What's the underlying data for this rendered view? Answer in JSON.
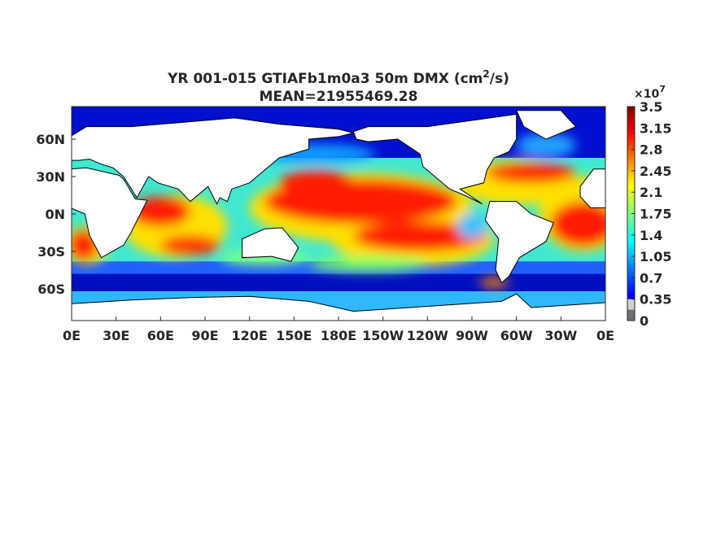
{
  "title": {
    "line1_before": "YR 001-015 GTIAFb1m0a3 50m DMX (cm",
    "line1_sup": "2",
    "line1_after": "/s)",
    "line2": "MEAN=21955469.28"
  },
  "axes": {
    "xticks": [
      "0E",
      "30E",
      "60E",
      "90E",
      "120E",
      "150E",
      "180E",
      "150W",
      "120W",
      "90W",
      "60W",
      "30W",
      "0E"
    ],
    "yticks": [
      "60N",
      "30N",
      "0N",
      "30S",
      "60S"
    ]
  },
  "colorbar": {
    "multiplier_base": "×10",
    "multiplier_exponent": "7",
    "clim": [
      0,
      3.5
    ],
    "ticks": [
      0,
      0.35,
      0.7,
      1.05,
      1.4,
      1.75,
      2.1,
      2.45,
      2.8,
      3.15,
      3.5
    ]
  }
}
